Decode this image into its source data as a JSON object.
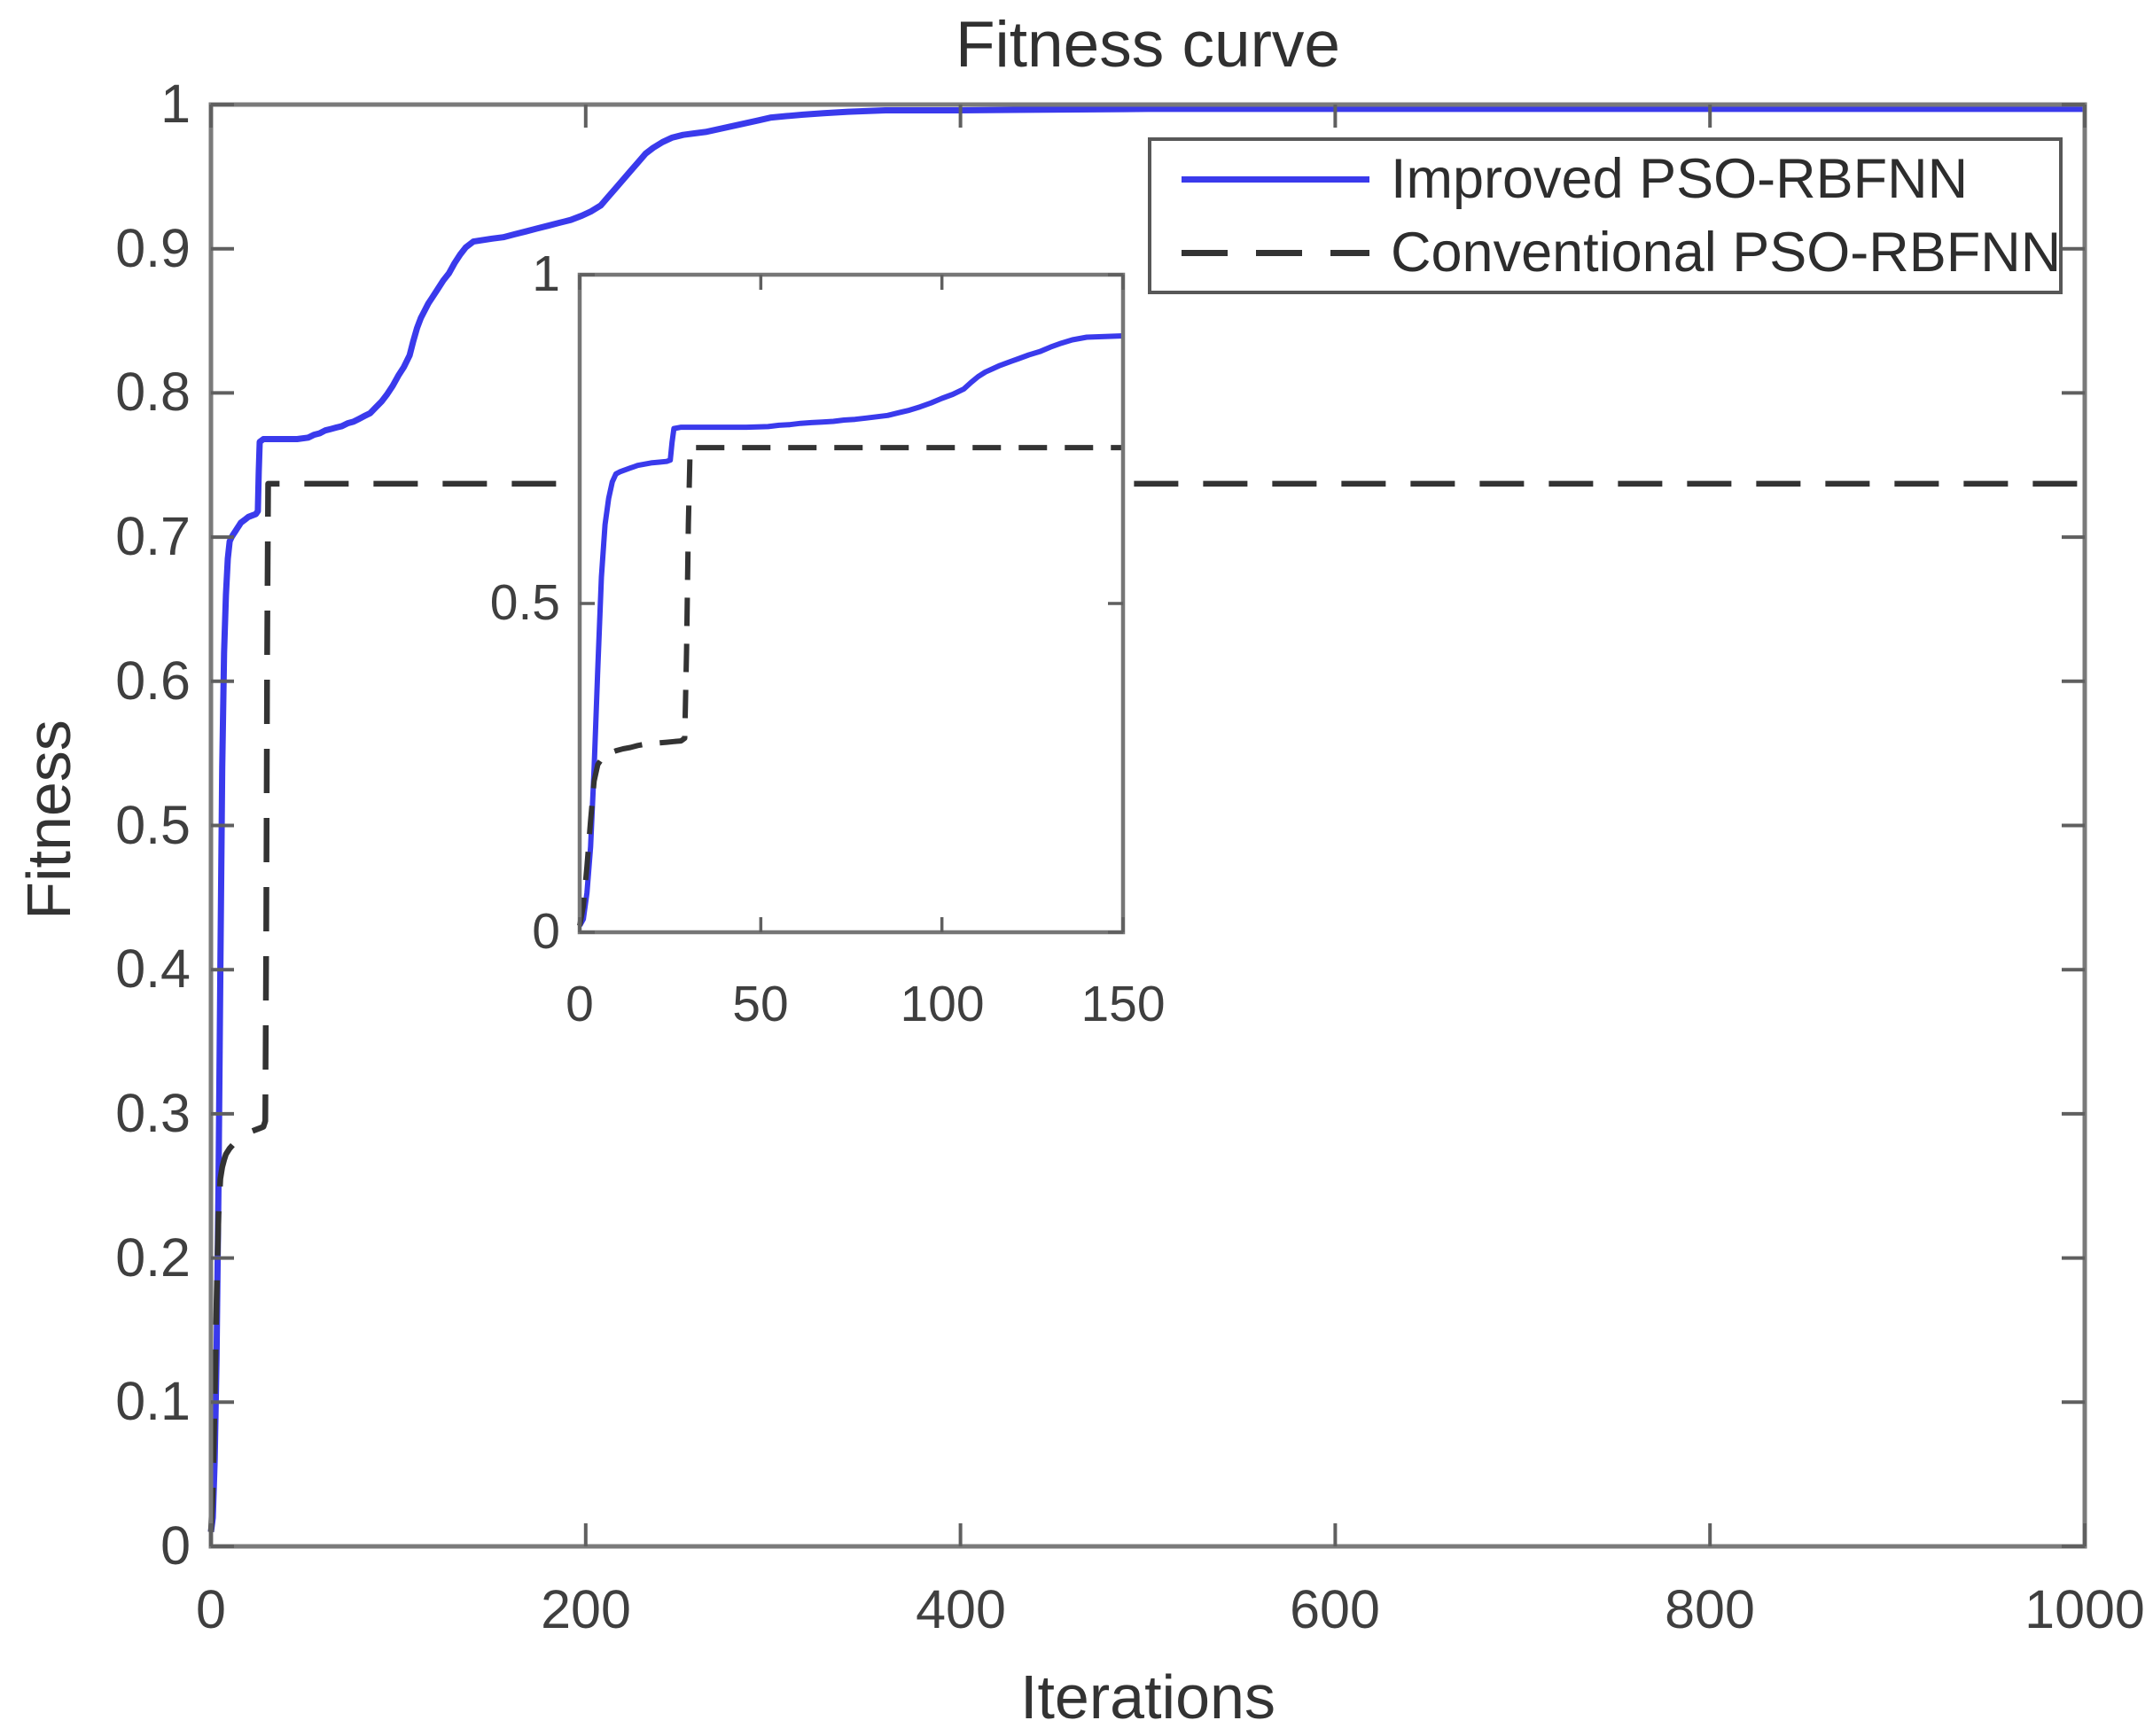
{
  "title": "Fitness curve",
  "axes": {
    "xlabel": "Iterations",
    "ylabel": "Fitness"
  },
  "legend": {
    "entries": [
      {
        "label": "Improved PSO-RBFNN",
        "style": "solid",
        "color": "#3a3aec"
      },
      {
        "label": "Conventional PSO-RBFNN",
        "style": "dashed",
        "color": "#333333"
      }
    ]
  },
  "colors": {
    "improved_line": "#3a3aec",
    "conventional_line": "#333333",
    "axis_border": "#7a7a7a",
    "tick": "#5f5f5f",
    "text": "#3f3f3f",
    "background": "#ffffff"
  },
  "chart_data": {
    "type": "line",
    "title": "Fitness curve",
    "xlabel": "Iterations",
    "ylabel": "Fitness",
    "xlim": [
      0,
      1000
    ],
    "ylim": [
      0,
      1
    ],
    "x_ticks": [
      0,
      200,
      400,
      600,
      800,
      1000
    ],
    "x_tick_labels": [
      "0",
      "200",
      "400",
      "600",
      "800",
      "1000"
    ],
    "y_ticks": [
      0,
      0.1,
      0.2,
      0.3,
      0.4,
      0.5,
      0.6,
      0.7,
      0.8,
      0.9,
      1
    ],
    "y_tick_labels": [
      "0",
      "0.1",
      "0.2",
      "0.3",
      "0.4",
      "0.5",
      "0.6",
      "0.7",
      "0.8",
      "0.9",
      "1"
    ],
    "grid": false,
    "legend_position": "top-right",
    "series": [
      {
        "name": "Improved PSO-RBFNN",
        "color": "#3a3aec",
        "line_style": "solid",
        "points": [
          [
            0,
            0.01
          ],
          [
            1,
            0.02
          ],
          [
            2,
            0.06
          ],
          [
            3,
            0.13
          ],
          [
            4,
            0.25
          ],
          [
            5,
            0.4
          ],
          [
            6,
            0.54
          ],
          [
            7,
            0.62
          ],
          [
            8,
            0.66
          ],
          [
            9,
            0.685
          ],
          [
            10,
            0.697
          ],
          [
            11,
            0.7
          ],
          [
            12,
            0.702
          ],
          [
            13,
            0.704
          ],
          [
            14,
            0.706
          ],
          [
            15,
            0.708
          ],
          [
            16,
            0.71
          ],
          [
            18,
            0.712
          ],
          [
            20,
            0.714
          ],
          [
            22,
            0.715
          ],
          [
            24,
            0.716
          ],
          [
            25,
            0.718
          ],
          [
            25.5,
            0.745
          ],
          [
            26,
            0.766
          ],
          [
            28,
            0.768
          ],
          [
            34,
            0.768
          ],
          [
            40,
            0.768
          ],
          [
            46,
            0.768
          ],
          [
            52,
            0.769
          ],
          [
            55,
            0.771
          ],
          [
            58,
            0.772
          ],
          [
            61,
            0.774
          ],
          [
            64,
            0.775
          ],
          [
            67,
            0.776
          ],
          [
            70,
            0.777
          ],
          [
            73,
            0.779
          ],
          [
            76,
            0.78
          ],
          [
            79,
            0.782
          ],
          [
            82,
            0.784
          ],
          [
            85,
            0.786
          ],
          [
            88,
            0.79
          ],
          [
            91,
            0.794
          ],
          [
            94,
            0.799
          ],
          [
            97,
            0.805
          ],
          [
            100,
            0.812
          ],
          [
            103,
            0.818
          ],
          [
            106,
            0.826
          ],
          [
            108,
            0.836
          ],
          [
            110,
            0.845
          ],
          [
            112,
            0.852
          ],
          [
            114,
            0.857
          ],
          [
            116,
            0.862
          ],
          [
            118,
            0.866
          ],
          [
            121,
            0.872
          ],
          [
            124,
            0.878
          ],
          [
            127,
            0.883
          ],
          [
            130,
            0.89
          ],
          [
            133,
            0.896
          ],
          [
            136,
            0.901
          ],
          [
            140,
            0.905
          ],
          [
            145,
            0.906
          ],
          [
            150,
            0.907
          ],
          [
            156,
            0.908
          ],
          [
            162,
            0.91
          ],
          [
            168,
            0.912
          ],
          [
            174,
            0.914
          ],
          [
            180,
            0.916
          ],
          [
            186,
            0.918
          ],
          [
            192,
            0.92
          ],
          [
            198,
            0.923
          ],
          [
            203,
            0.926
          ],
          [
            208,
            0.93
          ],
          [
            212,
            0.936
          ],
          [
            216,
            0.942
          ],
          [
            220,
            0.948
          ],
          [
            224,
            0.954
          ],
          [
            228,
            0.96
          ],
          [
            232,
            0.966
          ],
          [
            236,
            0.97
          ],
          [
            241,
            0.974
          ],
          [
            246,
            0.977
          ],
          [
            252,
            0.979
          ],
          [
            258,
            0.98
          ],
          [
            264,
            0.981
          ],
          [
            271,
            0.983
          ],
          [
            278,
            0.985
          ],
          [
            285,
            0.987
          ],
          [
            292,
            0.989
          ],
          [
            299,
            0.991
          ],
          [
            307,
            0.992
          ],
          [
            316,
            0.993
          ],
          [
            327,
            0.994
          ],
          [
            340,
            0.995
          ],
          [
            360,
            0.996
          ],
          [
            400,
            0.996
          ],
          [
            500,
            0.997
          ],
          [
            650,
            0.997
          ],
          [
            800,
            0.997
          ],
          [
            1000,
            0.997
          ]
        ]
      },
      {
        "name": "Conventional PSO-RBFNN",
        "color": "#333333",
        "line_style": "dashed",
        "points": [
          [
            0,
            0.01
          ],
          [
            1,
            0.04
          ],
          [
            2,
            0.1
          ],
          [
            3,
            0.17
          ],
          [
            4,
            0.23
          ],
          [
            5,
            0.255
          ],
          [
            6,
            0.263
          ],
          [
            7,
            0.268
          ],
          [
            8,
            0.272
          ],
          [
            10,
            0.276
          ],
          [
            12,
            0.279
          ],
          [
            14,
            0.281
          ],
          [
            16,
            0.284
          ],
          [
            18,
            0.286
          ],
          [
            20,
            0.287
          ],
          [
            22,
            0.288
          ],
          [
            24,
            0.289
          ],
          [
            26,
            0.29
          ],
          [
            28,
            0.291
          ],
          [
            29,
            0.295
          ],
          [
            29.5,
            0.43
          ],
          [
            30,
            0.62
          ],
          [
            30.5,
            0.737
          ],
          [
            50,
            0.737
          ],
          [
            100,
            0.737
          ],
          [
            150,
            0.737
          ],
          [
            200,
            0.737
          ],
          [
            350,
            0.737
          ],
          [
            500,
            0.737
          ],
          [
            650,
            0.737
          ],
          [
            800,
            0.737
          ],
          [
            900,
            0.737
          ],
          [
            1000,
            0.737
          ]
        ]
      }
    ],
    "inset": {
      "xlim": [
        0,
        150
      ],
      "ylim": [
        0,
        1
      ],
      "x_ticks": [
        0,
        50,
        100,
        150
      ],
      "x_tick_labels": [
        "0",
        "50",
        "100",
        "150"
      ],
      "y_ticks": [
        0,
        0.5,
        1
      ],
      "y_tick_labels": [
        "0",
        "0.5",
        "1"
      ]
    }
  }
}
